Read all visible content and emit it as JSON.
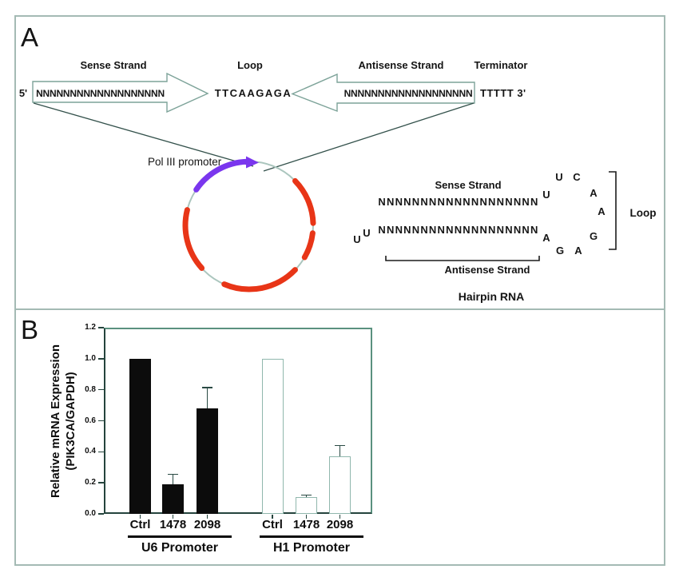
{
  "figure": {
    "panel_a_label": "A",
    "panel_b_label": "B"
  },
  "panelA": {
    "construct": {
      "five_prime": "5'",
      "sense_label": "Sense Strand",
      "sense_seq": "NNNNNNNNNNNNNNNNNNN",
      "loop_label": "Loop",
      "loop_seq": "TTCAAGAGA",
      "antisense_label": "Antisense Strand",
      "antisense_seq": "NNNNNNNNNNNNNNNNNNN",
      "terminator_label": "Terminator",
      "terminator_seq": "TTTTT 3'"
    },
    "plasmid": {
      "promoter_label": "Pol III promoter",
      "promoter_color": "#7a36ee",
      "insert_color": "#e83517",
      "backbone_color": "#abc6be"
    },
    "hairpin": {
      "sense_label": "Sense Strand",
      "sense_seq": "NNNNNNNNNNNNNNNNNNN",
      "antisense_seq": "NNNNNNNNNNNNNNNNNNN",
      "overhang": [
        "U",
        "U"
      ],
      "loop_letters": [
        "U",
        "U",
        "C",
        "A",
        "A",
        "G",
        "A",
        "G",
        "A"
      ],
      "loop_label": "Loop",
      "antisense_label": "Antisense Strand",
      "caption": "Hairpin RNA"
    }
  },
  "chart_data": {
    "type": "bar",
    "title": "",
    "ylabel_line1": "Relative mRNA Expression",
    "ylabel_line2": "(PIK3CA/GAPDH)",
    "ylim": [
      0,
      1.2
    ],
    "ytick_step": 0.2,
    "yticks": [
      "0.0",
      "0.2",
      "0.4",
      "0.6",
      "0.8",
      "1.0",
      "1.2"
    ],
    "grid": false,
    "legend": "none",
    "groups": [
      {
        "label": "U6 Promoter",
        "bar_style": "filled",
        "fill": "#0c0c0c",
        "outline": "#0c0c0c",
        "categories": [
          "Ctrl",
          "1478",
          "2098"
        ],
        "values": [
          1.0,
          0.19,
          0.68
        ],
        "errors": [
          0,
          0.065,
          0.135
        ]
      },
      {
        "label": "H1 Promoter",
        "bar_style": "open",
        "fill": "#ffffff",
        "outline": "#90b7ad",
        "categories": [
          "Ctrl",
          "1478",
          "2098"
        ],
        "values": [
          1.0,
          0.11,
          0.37
        ],
        "errors": [
          0,
          0.01,
          0.07
        ]
      }
    ]
  }
}
